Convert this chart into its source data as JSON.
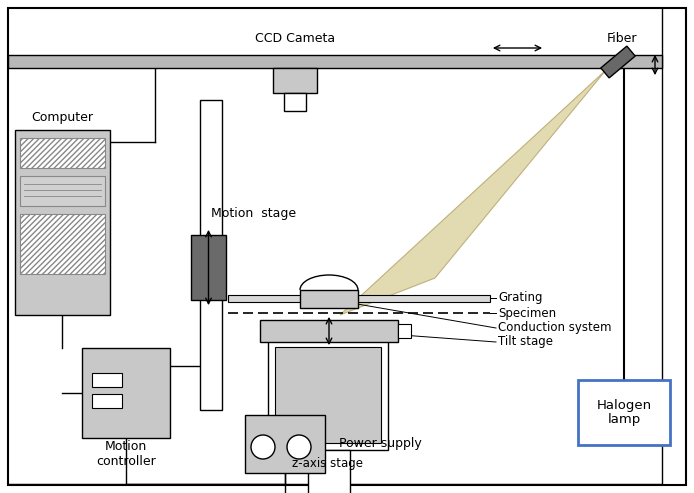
{
  "bg": "#ffffff",
  "gray_dark": "#6a6a6a",
  "gray_med": "#999999",
  "gray_light": "#c8c8c8",
  "gray_rail": "#b8b8b8",
  "blue_border": "#4472c4",
  "beam_fill": "#dfd7a8",
  "beam_edge": "#b8a870",
  "fiber_fill": "#686868",
  "fig_w": 6.94,
  "fig_h": 4.93,
  "dpi": 100,
  "labels": {
    "ccd": "CCD Cameta",
    "fiber": "Fiber",
    "computer": "Computer",
    "motion_stage": "Motion  stage",
    "grating": "Grating",
    "specimen": "Specimen",
    "conduction": "Conduction system",
    "tilt": "Tilt stage",
    "z_axis": "z-axis stage",
    "power_supply": "Power supply",
    "motion_ctrl": "Motion\ncontroller",
    "halogen": "Halogen\nlamp"
  }
}
